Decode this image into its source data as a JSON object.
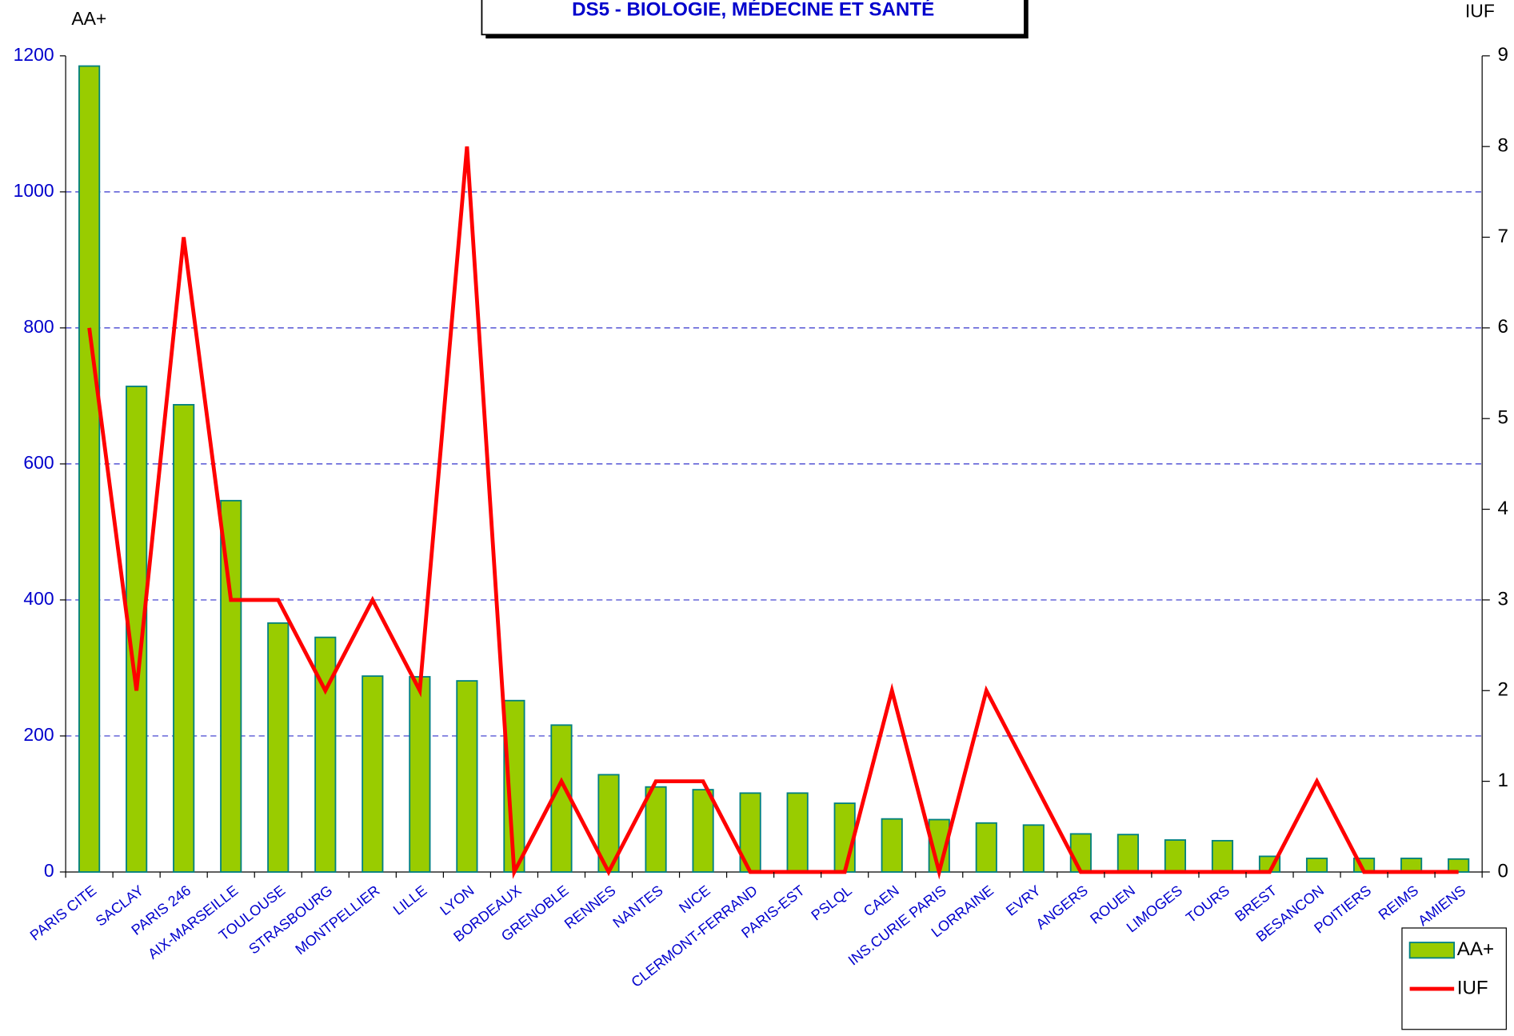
{
  "chart_data": {
    "type": "bar",
    "title": "DS5 - BIOLOGIE, MÉDECINE ET SANTÉ",
    "ylabel": "AA+",
    "y2label": "IUF",
    "categories": [
      "PARIS CITE",
      "SACLAY",
      "PARIS 246",
      "AIX-MARSEILLE",
      "TOULOUSE",
      "STRASBOURG",
      "MONTPELLIER",
      "LILLE",
      "LYON",
      "BORDEAUX",
      "GRENOBLE",
      "RENNES",
      "NANTES",
      "NICE",
      "CLERMONT-FERRAND",
      "PARIS-EST",
      "PSLQL",
      "CAEN",
      "INS.CURIE PARIS",
      "LORRAINE",
      "EVRY",
      "ANGERS",
      "ROUEN",
      "LIMOGES",
      "TOURS",
      "BREST",
      "BESANCON",
      "POITIERS",
      "REIMS",
      "AMIENS"
    ],
    "series": [
      {
        "name": "AA+",
        "type": "bar",
        "color": "#99cc00",
        "values": [
          1185,
          714,
          687,
          546,
          366,
          345,
          288,
          287,
          281,
          252,
          216,
          143,
          125,
          121,
          116,
          116,
          101,
          78,
          77,
          72,
          69,
          56,
          55,
          47,
          46,
          23,
          20,
          20,
          20,
          19
        ]
      },
      {
        "name": "IUF",
        "type": "line",
        "axis": "y2",
        "color": "#ff0000",
        "values": [
          6,
          2,
          7,
          3,
          3,
          2,
          3,
          2,
          8,
          0,
          1,
          0,
          1,
          1,
          0,
          0,
          0,
          2,
          0,
          2,
          1,
          0,
          0,
          0,
          0,
          0,
          1,
          0,
          0,
          0
        ]
      }
    ],
    "ylim": [
      0,
      1200
    ],
    "yticks": [
      0,
      200,
      400,
      600,
      800,
      1000,
      1200
    ],
    "y2lim": [
      0,
      9
    ],
    "y2ticks": [
      0,
      1,
      2,
      3,
      4,
      5,
      6,
      7,
      8,
      9
    ],
    "grid": true,
    "legend": "lower right"
  }
}
